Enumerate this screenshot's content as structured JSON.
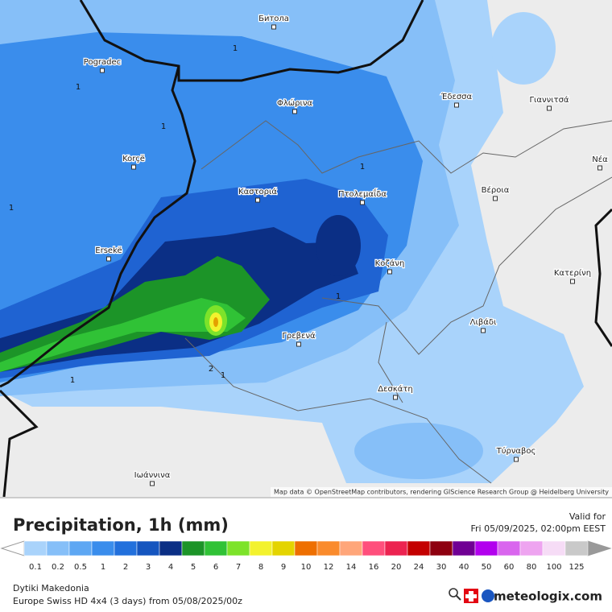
{
  "map": {
    "cities": [
      "Битола",
      "Pogradec",
      "Φλώρινα",
      "Έδεσσα",
      "Γιαννιτσά",
      "Korçë",
      "Καστοριά",
      "Πτολεμαΐδα",
      "Βέροια",
      "Νέα",
      "Ersekë",
      "Κοζάνη",
      "Κατερίνη",
      "Λιβάδι",
      "Γρεβενά",
      "Δεσκάτη",
      "Τύρναβος",
      "Ιωάννινα"
    ],
    "contour_labels": [
      1,
      1,
      1,
      1,
      1,
      1,
      1,
      1,
      2
    ],
    "attribution": "Map data © OpenStreetMap contributors, rendering GIScience Research Group @ Heidelberg University"
  },
  "legend": {
    "title": "Precipitation, 1h (mm)",
    "valid_label": "Valid for",
    "valid_time": "Fri 05/09/2025, 02:00pm EEST",
    "bins": [
      {
        "value": 0.1,
        "color": "#a9d3fb"
      },
      {
        "value": 0.2,
        "color": "#86bff8"
      },
      {
        "value": 0.5,
        "color": "#5ea7f3"
      },
      {
        "value": 1,
        "color": "#3a8dec"
      },
      {
        "value": 2,
        "color": "#2270dc"
      },
      {
        "value": 3,
        "color": "#1555bf"
      },
      {
        "value": 4,
        "color": "#0b2f85"
      },
      {
        "value": 5,
        "color": "#1c9428"
      },
      {
        "value": 6,
        "color": "#30c236"
      },
      {
        "value": 7,
        "color": "#7de32a"
      },
      {
        "value": 8,
        "color": "#f3f22e"
      },
      {
        "value": 9,
        "color": "#e4d400"
      },
      {
        "value": 10,
        "color": "#ee6f00"
      },
      {
        "value": 12,
        "color": "#fa8b2c"
      },
      {
        "value": 14,
        "color": "#ffa67a"
      },
      {
        "value": 16,
        "color": "#ff4f7c"
      },
      {
        "value": 20,
        "color": "#ec2350"
      },
      {
        "value": 24,
        "color": "#c40000"
      },
      {
        "value": 30,
        "color": "#8e0010"
      },
      {
        "value": 40,
        "color": "#700094"
      },
      {
        "value": 50,
        "color": "#b200ee"
      },
      {
        "value": 60,
        "color": "#d966ee"
      },
      {
        "value": 80,
        "color": "#eea4f0"
      },
      {
        "value": 100,
        "color": "#f6dcf6"
      },
      {
        "value": 125,
        "color": "#c9c9c9"
      }
    ]
  },
  "footer": {
    "region": "Dytiki Makedonia",
    "model": "Europe Swiss HD 4x4 (3 days)  from  05/08/2025/00z",
    "brand": "meteologix.com"
  }
}
